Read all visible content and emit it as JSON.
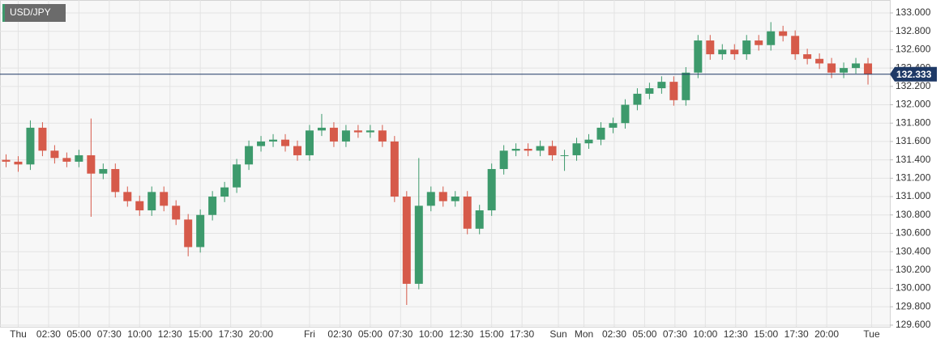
{
  "chart_data": {
    "type": "candlestick",
    "title": "USD/JPY",
    "x": [
      -1,
      0,
      1,
      2,
      3,
      4,
      5,
      6,
      7,
      8,
      9,
      10,
      11,
      12,
      13,
      14,
      15,
      16,
      17,
      18,
      19,
      20,
      21,
      22,
      23,
      24,
      25,
      26,
      27,
      28,
      29,
      30,
      31,
      32,
      33,
      34,
      35,
      36,
      37,
      38,
      39,
      40,
      41,
      42,
      43,
      44,
      45,
      46,
      47,
      48,
      49,
      50,
      51,
      52,
      53,
      54,
      55,
      56,
      57,
      58,
      59,
      60,
      61,
      62,
      63,
      64,
      65,
      66,
      67,
      68,
      69,
      70
    ],
    "open": [
      131.4,
      131.38,
      131.35,
      131.75,
      131.5,
      131.42,
      131.38,
      131.45,
      131.25,
      131.3,
      131.05,
      130.95,
      130.85,
      131.05,
      130.9,
      130.75,
      130.45,
      130.8,
      131.0,
      131.1,
      131.35,
      131.55,
      131.6,
      131.62,
      131.55,
      131.45,
      131.72,
      131.75,
      131.6,
      131.72,
      131.7,
      131.72,
      131.6,
      131.0,
      130.05,
      130.9,
      131.05,
      130.95,
      131.0,
      130.65,
      130.85,
      131.3,
      131.5,
      131.52,
      131.5,
      131.55,
      131.45,
      131.45,
      131.58,
      131.62,
      131.75,
      131.8,
      132.0,
      132.12,
      132.18,
      132.25,
      132.05,
      132.35,
      132.7,
      132.55,
      132.6,
      132.55,
      132.7,
      132.65,
      132.8,
      132.75,
      132.55,
      132.5,
      132.45,
      132.35,
      132.4,
      132.45
    ],
    "high": [
      131.46,
      131.44,
      131.83,
      131.81,
      131.56,
      131.48,
      131.51,
      131.85,
      131.36,
      131.36,
      131.11,
      131.01,
      131.11,
      131.11,
      130.96,
      130.81,
      130.86,
      131.06,
      131.16,
      131.41,
      131.61,
      131.66,
      131.68,
      131.68,
      131.61,
      131.78,
      131.9,
      131.81,
      131.78,
      131.78,
      131.78,
      131.78,
      131.66,
      131.06,
      131.42,
      131.11,
      131.11,
      131.06,
      131.06,
      130.91,
      131.36,
      131.56,
      131.58,
      131.58,
      131.61,
      131.61,
      131.51,
      131.64,
      131.68,
      131.81,
      131.86,
      132.06,
      132.18,
      132.24,
      132.31,
      132.31,
      132.41,
      132.76,
      132.76,
      132.66,
      132.66,
      132.76,
      132.76,
      132.9,
      132.86,
      132.81,
      132.61,
      132.56,
      132.51,
      132.46,
      132.51,
      132.51
    ],
    "low": [
      131.32,
      131.27,
      131.29,
      131.44,
      131.36,
      131.32,
      131.32,
      130.78,
      131.19,
      130.99,
      130.89,
      130.79,
      130.79,
      130.84,
      130.69,
      130.35,
      130.39,
      130.74,
      130.94,
      131.04,
      131.29,
      131.49,
      131.54,
      131.49,
      131.39,
      131.39,
      131.66,
      131.54,
      131.54,
      131.64,
      131.64,
      131.54,
      130.94,
      129.82,
      129.99,
      130.84,
      130.89,
      130.89,
      130.59,
      130.59,
      130.79,
      131.24,
      131.44,
      131.44,
      131.44,
      131.39,
      131.28,
      131.39,
      131.52,
      131.56,
      131.69,
      131.74,
      131.94,
      132.06,
      132.12,
      131.99,
      131.99,
      132.29,
      132.49,
      132.49,
      132.49,
      132.49,
      132.59,
      132.59,
      132.69,
      132.49,
      132.44,
      132.39,
      132.29,
      132.29,
      132.34,
      132.22
    ],
    "close": [
      131.38,
      131.35,
      131.75,
      131.5,
      131.42,
      131.38,
      131.45,
      131.25,
      131.3,
      131.05,
      130.95,
      130.85,
      131.05,
      130.9,
      130.75,
      130.45,
      130.8,
      131.0,
      131.1,
      131.35,
      131.55,
      131.6,
      131.62,
      131.55,
      131.45,
      131.72,
      131.75,
      131.6,
      131.72,
      131.7,
      131.72,
      131.6,
      131.0,
      130.05,
      130.9,
      131.05,
      130.95,
      131.0,
      130.65,
      130.85,
      131.3,
      131.5,
      131.52,
      131.5,
      131.55,
      131.45,
      131.45,
      131.58,
      131.62,
      131.75,
      131.8,
      132.0,
      132.12,
      132.18,
      132.25,
      132.05,
      132.35,
      132.7,
      132.55,
      132.6,
      132.55,
      132.7,
      132.65,
      132.8,
      132.75,
      132.55,
      132.5,
      132.45,
      132.35,
      132.4,
      132.45,
      132.333
    ],
    "up_color": "#3d9a6c",
    "down_color": "#d65a4a",
    "current_price": 132.333,
    "current_price_color": "#1e3966",
    "xlim": [
      -1.5,
      71.8
    ],
    "ylim": [
      129.582,
      133.141
    ],
    "xticks": [
      {
        "value": 0,
        "label": "Thu"
      },
      {
        "value": 2.5,
        "label": "02:30"
      },
      {
        "value": 5,
        "label": "05:00"
      },
      {
        "value": 7.5,
        "label": "07:30"
      },
      {
        "value": 10,
        "label": "10:00"
      },
      {
        "value": 12.5,
        "label": "12:30"
      },
      {
        "value": 15,
        "label": "15:00"
      },
      {
        "value": 17.5,
        "label": "17:30"
      },
      {
        "value": 20,
        "label": "20:00"
      },
      {
        "value": 24,
        "label": "Fri"
      },
      {
        "value": 26.5,
        "label": "02:30"
      },
      {
        "value": 29,
        "label": "05:00"
      },
      {
        "value": 31.5,
        "label": "07:30"
      },
      {
        "value": 34,
        "label": "10:00"
      },
      {
        "value": 36.5,
        "label": "12:30"
      },
      {
        "value": 39,
        "label": "15:00"
      },
      {
        "value": 41.5,
        "label": "17:30"
      },
      {
        "value": 44.5,
        "label": "Sun"
      },
      {
        "value": 46.6,
        "label": "Mon"
      },
      {
        "value": 49.1,
        "label": "02:30"
      },
      {
        "value": 51.6,
        "label": "05:00"
      },
      {
        "value": 54.1,
        "label": "07:30"
      },
      {
        "value": 56.6,
        "label": "10:00"
      },
      {
        "value": 59.1,
        "label": "12:30"
      },
      {
        "value": 61.6,
        "label": "15:00"
      },
      {
        "value": 64.1,
        "label": "17:30"
      },
      {
        "value": 66.6,
        "label": "20:00"
      },
      {
        "value": 70.3,
        "label": "Tue"
      }
    ],
    "yticks": [
      {
        "value": 129.6,
        "label": "129.600"
      },
      {
        "value": 129.8,
        "label": "129.800"
      },
      {
        "value": 130.0,
        "label": "130.000"
      },
      {
        "value": 130.2,
        "label": "130.200"
      },
      {
        "value": 130.4,
        "label": "130.400"
      },
      {
        "value": 130.6,
        "label": "130.600"
      },
      {
        "value": 130.8,
        "label": "130.800"
      },
      {
        "value": 131.0,
        "label": "131.000"
      },
      {
        "value": 131.2,
        "label": "131.200"
      },
      {
        "value": 131.4,
        "label": "131.400"
      },
      {
        "value": 131.6,
        "label": "131.600"
      },
      {
        "value": 131.8,
        "label": "131.800"
      },
      {
        "value": 132.0,
        "label": "132.000"
      },
      {
        "value": 132.2,
        "label": "132.200"
      },
      {
        "value": 132.4,
        "label": "132.400"
      },
      {
        "value": 132.6,
        "label": "132.600"
      },
      {
        "value": 132.8,
        "label": "132.800"
      },
      {
        "value": 133.0,
        "label": "133.000"
      }
    ],
    "grid": true
  }
}
